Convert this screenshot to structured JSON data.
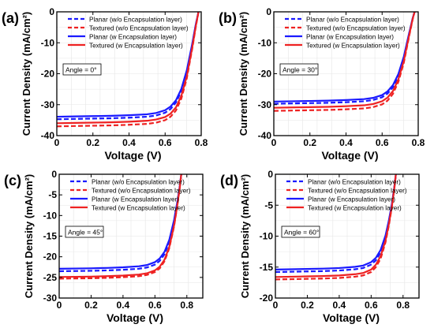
{
  "figure": {
    "colors": {
      "planar": "#1a1aff",
      "textured": "#ee2222"
    }
  },
  "chart_data": [
    {
      "type": "line",
      "panel_label": "(a)",
      "annotation": "Angle = 0°",
      "xlabel": "Voltage (V)",
      "ylabel": "Current Density (mA/cm²)",
      "xlim": [
        0,
        0.8
      ],
      "ylim": [
        -40,
        0
      ],
      "xticks": [
        0,
        0.2,
        0.4,
        0.6,
        0.8
      ],
      "xtick_labels": [
        "0",
        "0.2",
        "0.4",
        "0.6",
        "0.8"
      ],
      "yticks": [
        -40,
        -30,
        -20,
        -10,
        0
      ],
      "ytick_labels": [
        "-40",
        "-30",
        "-20",
        "-10",
        "0"
      ],
      "grid": true,
      "legend_position": "top-right",
      "series": [
        {
          "name": "Planar (w/o Encapsulation layer)",
          "color": "#1a1aff",
          "dash": true,
          "jsc": -34.7,
          "voc": 0.785,
          "x": [
            0,
            0.1,
            0.2,
            0.3,
            0.4,
            0.5,
            0.55,
            0.6,
            0.63,
            0.66,
            0.69,
            0.72,
            0.75,
            0.77,
            0.785
          ],
          "y": [
            -34.7,
            -34.6,
            -34.5,
            -34.4,
            -34.2,
            -33.9,
            -33.5,
            -32.6,
            -31.4,
            -29.3,
            -25.6,
            -19.5,
            -10.8,
            -4.2,
            0
          ]
        },
        {
          "name": "Textured (w/o Encapsulation layer)",
          "color": "#ee2222",
          "dash": true,
          "jsc": -37.0,
          "voc": 0.785,
          "x": [
            0,
            0.1,
            0.2,
            0.3,
            0.4,
            0.5,
            0.55,
            0.6,
            0.63,
            0.66,
            0.69,
            0.72,
            0.75,
            0.77,
            0.785
          ],
          "y": [
            -37.0,
            -36.9,
            -36.8,
            -36.7,
            -36.5,
            -36.2,
            -35.8,
            -35.0,
            -33.9,
            -31.9,
            -28.0,
            -21.5,
            -12.0,
            -4.8,
            0
          ]
        },
        {
          "name": "Planar (w Encapsulation layer)",
          "color": "#1a1aff",
          "dash": false,
          "jsc": -33.9,
          "voc": 0.785,
          "x": [
            0,
            0.1,
            0.2,
            0.3,
            0.4,
            0.5,
            0.55,
            0.6,
            0.63,
            0.66,
            0.69,
            0.72,
            0.75,
            0.77,
            0.785
          ],
          "y": [
            -33.9,
            -33.8,
            -33.7,
            -33.6,
            -33.4,
            -33.1,
            -32.7,
            -31.8,
            -30.6,
            -28.6,
            -24.9,
            -18.9,
            -10.4,
            -4.0,
            0
          ]
        },
        {
          "name": "Textured (w Encapsulation layer)",
          "color": "#ee2222",
          "dash": false,
          "jsc": -36.0,
          "voc": 0.785,
          "x": [
            0,
            0.1,
            0.2,
            0.3,
            0.4,
            0.5,
            0.55,
            0.6,
            0.63,
            0.66,
            0.69,
            0.72,
            0.75,
            0.77,
            0.785
          ],
          "y": [
            -36.0,
            -35.9,
            -35.8,
            -35.7,
            -35.5,
            -35.2,
            -34.8,
            -34.0,
            -32.9,
            -30.9,
            -27.1,
            -20.8,
            -11.6,
            -4.6,
            0
          ]
        }
      ]
    },
    {
      "type": "line",
      "panel_label": "(b)",
      "annotation": "Angle = 30°",
      "xlabel": "Voltage (V)",
      "ylabel": "Current Density (mA/cm²)",
      "xlim": [
        0,
        0.8
      ],
      "ylim": [
        -40,
        0
      ],
      "xticks": [
        0,
        0.2,
        0.4,
        0.6,
        0.8
      ],
      "xtick_labels": [
        "0",
        "0.2",
        "0.4",
        "0.6",
        "0.8"
      ],
      "yticks": [
        -40,
        -30,
        -20,
        -10,
        0
      ],
      "ytick_labels": [
        "-40",
        "-30",
        "-20",
        "-10",
        "0"
      ],
      "grid": true,
      "legend_position": "top-right",
      "series": [
        {
          "name": "Planar (w/o Encapsulation layer)",
          "color": "#1a1aff",
          "dash": true,
          "jsc": -29.7,
          "voc": 0.78,
          "x": [
            0,
            0.1,
            0.2,
            0.3,
            0.4,
            0.5,
            0.55,
            0.6,
            0.63,
            0.66,
            0.69,
            0.72,
            0.75,
            0.77,
            0.78
          ],
          "y": [
            -29.7,
            -29.6,
            -29.5,
            -29.4,
            -29.2,
            -28.9,
            -28.5,
            -27.6,
            -26.4,
            -24.4,
            -20.8,
            -15.1,
            -7.1,
            -2.0,
            0
          ]
        },
        {
          "name": "Textured (w/o Encapsulation layer)",
          "color": "#ee2222",
          "dash": true,
          "jsc": -32.0,
          "voc": 0.78,
          "x": [
            0,
            0.1,
            0.2,
            0.3,
            0.4,
            0.5,
            0.55,
            0.6,
            0.63,
            0.66,
            0.69,
            0.72,
            0.75,
            0.77,
            0.78
          ],
          "y": [
            -32.0,
            -31.9,
            -31.8,
            -31.7,
            -31.5,
            -31.2,
            -30.8,
            -29.9,
            -28.7,
            -26.5,
            -22.6,
            -16.5,
            -7.8,
            -2.2,
            0
          ]
        },
        {
          "name": "Planar (w Encapsulation layer)",
          "color": "#1a1aff",
          "dash": false,
          "jsc": -29.0,
          "voc": 0.78,
          "x": [
            0,
            0.1,
            0.2,
            0.3,
            0.4,
            0.5,
            0.55,
            0.6,
            0.63,
            0.66,
            0.69,
            0.72,
            0.75,
            0.77,
            0.78
          ],
          "y": [
            -29.0,
            -28.9,
            -28.8,
            -28.7,
            -28.5,
            -28.2,
            -27.8,
            -26.9,
            -25.7,
            -23.7,
            -20.1,
            -14.5,
            -6.8,
            -1.9,
            0
          ]
        },
        {
          "name": "Textured (w Encapsulation layer)",
          "color": "#ee2222",
          "dash": false,
          "jsc": -31.0,
          "voc": 0.78,
          "x": [
            0,
            0.1,
            0.2,
            0.3,
            0.4,
            0.5,
            0.55,
            0.6,
            0.63,
            0.66,
            0.69,
            0.72,
            0.75,
            0.77,
            0.78
          ],
          "y": [
            -31.0,
            -30.9,
            -30.8,
            -30.7,
            -30.5,
            -30.2,
            -29.8,
            -28.9,
            -27.7,
            -25.6,
            -21.8,
            -15.9,
            -7.5,
            -2.1,
            0
          ]
        }
      ]
    },
    {
      "type": "line",
      "panel_label": "(c)",
      "annotation": "Angle = 45°",
      "xlabel": "Voltage (V)",
      "ylabel": "Current Density (mA/cm²)",
      "xlim": [
        0,
        0.9
      ],
      "ylim": [
        -30,
        0
      ],
      "xticks": [
        0,
        0.2,
        0.4,
        0.6,
        0.8
      ],
      "xtick_labels": [
        "0",
        "0.2",
        "0.4",
        "0.6",
        "0.8"
      ],
      "yticks": [
        -30,
        -25,
        -20,
        -15,
        -10,
        -5,
        0
      ],
      "ytick_labels": [
        "-30",
        "-25",
        "-20",
        "-15",
        "-10",
        "-5",
        "0"
      ],
      "grid": true,
      "legend_position": "top-right",
      "series": [
        {
          "name": "Planar (w/o Encapsulation layer)",
          "color": "#1a1aff",
          "dash": true,
          "jsc": -23.5,
          "voc": 0.765,
          "x": [
            0,
            0.1,
            0.2,
            0.3,
            0.4,
            0.5,
            0.55,
            0.6,
            0.63,
            0.66,
            0.69,
            0.72,
            0.74,
            0.755,
            0.765
          ],
          "y": [
            -23.5,
            -23.45,
            -23.4,
            -23.3,
            -23.15,
            -22.9,
            -22.6,
            -21.9,
            -21.0,
            -19.4,
            -16.4,
            -11.5,
            -7.0,
            -3.2,
            0
          ]
        },
        {
          "name": "Textured (w/o Encapsulation layer)",
          "color": "#ee2222",
          "dash": true,
          "jsc": -25.3,
          "voc": 0.765,
          "x": [
            0,
            0.1,
            0.2,
            0.3,
            0.4,
            0.5,
            0.55,
            0.6,
            0.63,
            0.66,
            0.69,
            0.72,
            0.74,
            0.755,
            0.765
          ],
          "y": [
            -25.3,
            -25.25,
            -25.2,
            -25.1,
            -24.95,
            -24.7,
            -24.4,
            -23.7,
            -22.8,
            -21.1,
            -17.9,
            -12.6,
            -7.7,
            -3.5,
            0
          ]
        },
        {
          "name": "Planar (w Encapsulation layer)",
          "color": "#1a1aff",
          "dash": false,
          "jsc": -22.9,
          "voc": 0.765,
          "x": [
            0,
            0.1,
            0.2,
            0.3,
            0.4,
            0.5,
            0.55,
            0.6,
            0.63,
            0.66,
            0.69,
            0.72,
            0.74,
            0.755,
            0.765
          ],
          "y": [
            -22.9,
            -22.85,
            -22.8,
            -22.7,
            -22.55,
            -22.3,
            -22.0,
            -21.3,
            -20.4,
            -18.8,
            -15.9,
            -11.1,
            -6.8,
            -3.1,
            0
          ]
        },
        {
          "name": "Textured (w Encapsulation layer)",
          "color": "#ee2222",
          "dash": false,
          "jsc": -24.9,
          "voc": 0.765,
          "x": [
            0,
            0.1,
            0.2,
            0.3,
            0.4,
            0.5,
            0.55,
            0.6,
            0.63,
            0.66,
            0.69,
            0.72,
            0.74,
            0.755,
            0.765
          ],
          "y": [
            -24.9,
            -24.85,
            -24.8,
            -24.7,
            -24.55,
            -24.3,
            -24.0,
            -23.3,
            -22.4,
            -20.7,
            -17.6,
            -12.4,
            -7.6,
            -3.4,
            0
          ]
        }
      ]
    },
    {
      "type": "line",
      "panel_label": "(d)",
      "annotation": "Angle = 60°",
      "xlabel": "Voltage (V)",
      "ylabel": "Current Density (mA/cm²)",
      "xlim": [
        0,
        0.9
      ],
      "ylim": [
        -20,
        0
      ],
      "xticks": [
        0,
        0.2,
        0.4,
        0.6,
        0.8
      ],
      "xtick_labels": [
        "0",
        "0.2",
        "0.4",
        "0.6",
        "0.8"
      ],
      "yticks": [
        -20,
        -15,
        -10,
        -5,
        0
      ],
      "ytick_labels": [
        "-20",
        "-15",
        "-10",
        "-5",
        "0"
      ],
      "grid": true,
      "legend_position": "top-right",
      "series": [
        {
          "name": "Planar (w/o Encapsulation layer)",
          "color": "#1a1aff",
          "dash": true,
          "jsc": -15.8,
          "voc": 0.755,
          "x": [
            0,
            0.1,
            0.2,
            0.3,
            0.4,
            0.5,
            0.55,
            0.6,
            0.63,
            0.66,
            0.69,
            0.71,
            0.73,
            0.745,
            0.755
          ],
          "y": [
            -15.8,
            -15.75,
            -15.7,
            -15.65,
            -15.55,
            -15.35,
            -15.15,
            -14.6,
            -13.9,
            -12.6,
            -10.2,
            -7.8,
            -4.9,
            -2.2,
            0
          ]
        },
        {
          "name": "Textured (w/o Encapsulation layer)",
          "color": "#ee2222",
          "dash": true,
          "jsc": -17.0,
          "voc": 0.755,
          "x": [
            0,
            0.1,
            0.2,
            0.3,
            0.4,
            0.5,
            0.55,
            0.6,
            0.63,
            0.66,
            0.69,
            0.71,
            0.73,
            0.745,
            0.755
          ],
          "y": [
            -17.0,
            -16.95,
            -16.9,
            -16.85,
            -16.75,
            -16.55,
            -16.35,
            -15.8,
            -15.0,
            -13.6,
            -11.0,
            -8.4,
            -5.3,
            -2.4,
            0
          ]
        },
        {
          "name": "Planar (w Encapsulation layer)",
          "color": "#1a1aff",
          "dash": false,
          "jsc": -15.4,
          "voc": 0.755,
          "x": [
            0,
            0.1,
            0.2,
            0.3,
            0.4,
            0.5,
            0.55,
            0.6,
            0.63,
            0.66,
            0.69,
            0.71,
            0.73,
            0.745,
            0.755
          ],
          "y": [
            -15.4,
            -15.35,
            -15.3,
            -15.25,
            -15.15,
            -14.95,
            -14.75,
            -14.2,
            -13.5,
            -12.2,
            -9.9,
            -7.6,
            -4.8,
            -2.1,
            0
          ]
        },
        {
          "name": "Textured (w Encapsulation layer)",
          "color": "#ee2222",
          "dash": false,
          "jsc": -16.6,
          "voc": 0.755,
          "x": [
            0,
            0.1,
            0.2,
            0.3,
            0.4,
            0.5,
            0.55,
            0.6,
            0.63,
            0.66,
            0.69,
            0.71,
            0.73,
            0.745,
            0.755
          ],
          "y": [
            -16.6,
            -16.55,
            -16.5,
            -16.45,
            -16.35,
            -16.15,
            -15.95,
            -15.4,
            -14.6,
            -13.2,
            -10.7,
            -8.2,
            -5.2,
            -2.3,
            0
          ]
        }
      ]
    }
  ]
}
